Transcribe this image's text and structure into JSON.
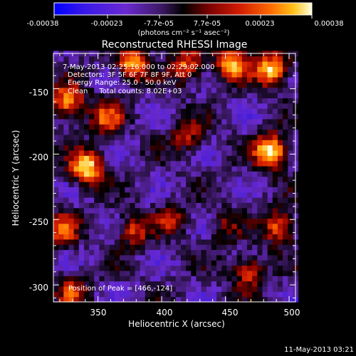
{
  "colorbar": {
    "tick_labels": [
      "-0.00038",
      "-0.00023",
      "-7.7e-05",
      "7.7e-05",
      "0.00023",
      "0.00038"
    ],
    "unit_label": "(photons cm⁻² s⁻¹ asec⁻²)",
    "range": [
      -0.00038,
      0.00038
    ]
  },
  "chart_data": {
    "type": "heatmap",
    "title": "Reconstructed RHESSI Image",
    "xlabel": "Heliocentric X (arcsec)",
    "ylabel": "Heliocentric Y (arcsec)",
    "xlim": [
      315,
      505
    ],
    "ylim": [
      -313,
      -123
    ],
    "x_ticks": [
      350,
      400,
      450,
      500
    ],
    "y_ticks": [
      -300,
      -250,
      -200,
      -150
    ],
    "x_tick_labels": [
      "350",
      "400",
      "450",
      "500"
    ],
    "y_tick_labels": [
      "-300",
      "-250",
      "-200",
      "-150"
    ],
    "value_range": [
      -0.00038,
      0.00038
    ],
    "colormap": [
      "#0000ff",
      "#4b1fd8",
      "#6a2ad0",
      "#3a1860",
      "#000000",
      "#7a0000",
      "#d21c00",
      "#ff6a00",
      "#ffc21a",
      "#ffffe0"
    ],
    "bright_sources": [
      {
        "x": 341,
        "y": -210,
        "level": 0.9
      },
      {
        "x": 486,
        "y": -198,
        "level": 0.95
      },
      {
        "x": 487,
        "y": -135,
        "level": 0.85
      },
      {
        "x": 326,
        "y": -160,
        "level": 0.75
      },
      {
        "x": 378,
        "y": -130,
        "level": 0.8
      },
      {
        "x": 455,
        "y": -130,
        "level": 0.75
      },
      {
        "x": 420,
        "y": -132,
        "level": 0.6
      },
      {
        "x": 356,
        "y": -172,
        "level": 0.55
      },
      {
        "x": 420,
        "y": -185,
        "level": 0.45
      },
      {
        "x": 492,
        "y": -255,
        "level": 0.65
      },
      {
        "x": 468,
        "y": -290,
        "level": 0.55
      },
      {
        "x": 378,
        "y": -258,
        "level": 0.5
      },
      {
        "x": 322,
        "y": -258,
        "level": 0.55
      },
      {
        "x": 330,
        "y": -305,
        "level": 0.45
      },
      {
        "x": 408,
        "y": -250,
        "level": 0.35
      },
      {
        "x": 450,
        "y": -255,
        "level": 0.3
      }
    ],
    "annotations": {
      "time_range": "7-May-2013 02:25:16.000 to 02:29:02.000",
      "detectors": "Detectors: 3F 5F 6F 7F 8F 9F, Att 0",
      "energy": "Energy Range: 25.0 - 50.0 keV",
      "method": "Clean     Total counts: 8.02E+03",
      "peak": "Position of Peak = [466,-124]"
    }
  },
  "footer": {
    "timestamp": "11-May-2013 03:21"
  }
}
